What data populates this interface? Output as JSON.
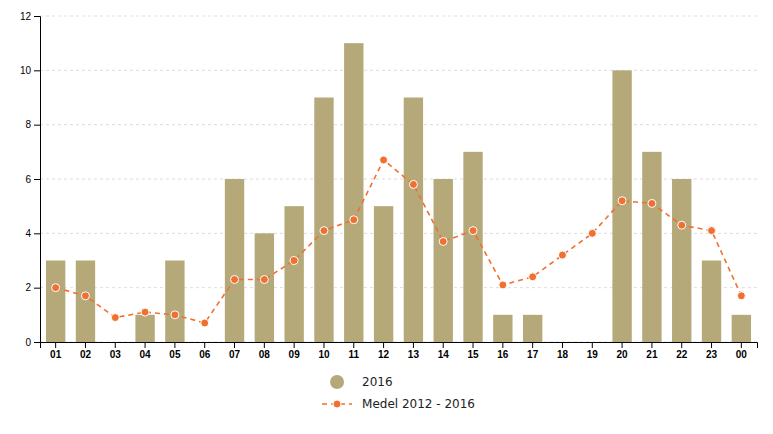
{
  "chart_data": {
    "type": "bar",
    "categories": [
      "01",
      "02",
      "03",
      "04",
      "05",
      "06",
      "07",
      "08",
      "09",
      "10",
      "11",
      "12",
      "13",
      "14",
      "15",
      "16",
      "17",
      "18",
      "19",
      "20",
      "21",
      "22",
      "23",
      "00"
    ],
    "series": [
      {
        "name": "2016",
        "type": "bar",
        "color": "#b5a97a",
        "values": [
          3,
          3,
          0,
          1,
          3,
          0,
          6,
          4,
          5,
          9,
          11,
          5,
          9,
          6,
          7,
          1,
          1,
          0,
          0,
          10,
          7,
          6,
          3,
          1
        ]
      },
      {
        "name": "Medel 2012 - 2016",
        "type": "line",
        "color": "#f07030",
        "marker": "circle",
        "line_style": "dashed",
        "values": [
          2.0,
          1.7,
          0.9,
          1.1,
          1.0,
          0.7,
          2.3,
          2.3,
          3.0,
          4.1,
          4.5,
          6.7,
          5.8,
          3.7,
          4.1,
          2.1,
          2.4,
          3.2,
          4.0,
          5.2,
          5.1,
          4.3,
          4.1,
          1.7
        ]
      }
    ],
    "ylim": [
      0,
      12
    ],
    "yticks": [
      0,
      2,
      4,
      6,
      8,
      10,
      12
    ],
    "grid": true,
    "legend": "bottom"
  }
}
